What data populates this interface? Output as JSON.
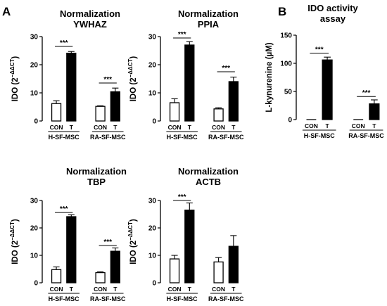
{
  "panel_letters": [
    "A",
    "B"
  ],
  "chart_data": [
    {
      "type": "bar",
      "title": [
        "Normalization",
        "YWHAZ"
      ],
      "ylabel": "IDO (2−ΔΔCT)",
      "ylim": [
        0,
        30
      ],
      "yticks": [
        0,
        10,
        20,
        30
      ],
      "groups": [
        "H-SF-MSC",
        "RA-SF-MSC"
      ],
      "categories": [
        "CON",
        "T",
        "CON",
        "T"
      ],
      "values": [
        6.2,
        24.1,
        5.2,
        10.4
      ],
      "errors": [
        1.0,
        0.6,
        0.2,
        1.3
      ],
      "fill": [
        "#ffffff",
        "#000000",
        "#ffffff",
        "#000000"
      ],
      "significance": [
        {
          "pair": [
            0,
            1
          ],
          "label": "***",
          "y": 26.5
        },
        {
          "pair": [
            2,
            3
          ],
          "label": "***",
          "y": 13.5
        }
      ]
    },
    {
      "type": "bar",
      "title": [
        "Normalization",
        "PPIA"
      ],
      "ylabel": "IDO (2−ΔΔCT)",
      "ylim": [
        0,
        30
      ],
      "yticks": [
        0,
        10,
        20,
        30
      ],
      "groups": [
        "H-SF-MSC",
        "RA-SF-MSC"
      ],
      "categories": [
        "CON",
        "T",
        "CON",
        "T"
      ],
      "values": [
        6.5,
        27.0,
        4.3,
        14.0
      ],
      "errors": [
        1.4,
        1.2,
        0.4,
        1.6
      ],
      "fill": [
        "#ffffff",
        "#000000",
        "#ffffff",
        "#000000"
      ],
      "significance": [
        {
          "pair": [
            0,
            1
          ],
          "label": "***",
          "y": 29.5
        },
        {
          "pair": [
            2,
            3
          ],
          "label": "***",
          "y": 17.5
        }
      ]
    },
    {
      "type": "bar",
      "title": [
        "IDO activity",
        "assay"
      ],
      "ylabel": "L-kynurenine (µM)",
      "ylim": [
        0,
        150
      ],
      "yticks": [
        0,
        50,
        100,
        150
      ],
      "groups": [
        "H-SF-MSC",
        "RA-SF-MSC"
      ],
      "categories": [
        "CON",
        "T",
        "CON",
        "T"
      ],
      "values": [
        0,
        106,
        0,
        28
      ],
      "errors": [
        0,
        5,
        0,
        7
      ],
      "fill": [
        "#ffffff",
        "#000000",
        "#ffffff",
        "#000000"
      ],
      "significance": [
        {
          "pair": [
            0,
            1
          ],
          "label": "***",
          "y": 118
        },
        {
          "pair": [
            2,
            3
          ],
          "label": "***",
          "y": 41
        }
      ]
    },
    {
      "type": "bar",
      "title": [
        "Normalization",
        "TBP"
      ],
      "ylabel": "IDO (2−ΔΔCT)",
      "ylim": [
        0,
        30
      ],
      "yticks": [
        0,
        10,
        20,
        30
      ],
      "groups": [
        "H-SF-MSC",
        "RA-SF-MSC"
      ],
      "categories": [
        "CON",
        "T",
        "CON",
        "T"
      ],
      "values": [
        4.8,
        24.1,
        3.7,
        11.5
      ],
      "errors": [
        1.0,
        0.7,
        0.3,
        1.2
      ],
      "fill": [
        "#ffffff",
        "#000000",
        "#ffffff",
        "#000000"
      ],
      "significance": [
        {
          "pair": [
            0,
            1
          ],
          "label": "***",
          "y": 25.6
        },
        {
          "pair": [
            2,
            3
          ],
          "label": "***",
          "y": 13.6
        }
      ]
    },
    {
      "type": "bar",
      "title": [
        "Normalization",
        "ACTB"
      ],
      "ylabel": "IDO (2−ΔΔCT)",
      "ylim": [
        0,
        30
      ],
      "yticks": [
        0,
        10,
        20,
        30
      ],
      "groups": [
        "H-SF-MSC",
        "RA-SF-MSC"
      ],
      "categories": [
        "CON",
        "T",
        "CON",
        "T"
      ],
      "values": [
        8.7,
        26.5,
        7.6,
        13.3
      ],
      "errors": [
        1.3,
        2.6,
        1.6,
        3.9
      ],
      "fill": [
        "#ffffff",
        "#000000",
        "#ffffff",
        "#000000"
      ],
      "significance": [
        {
          "pair": [
            0,
            1
          ],
          "label": "***",
          "y": 30.0
        }
      ]
    }
  ]
}
